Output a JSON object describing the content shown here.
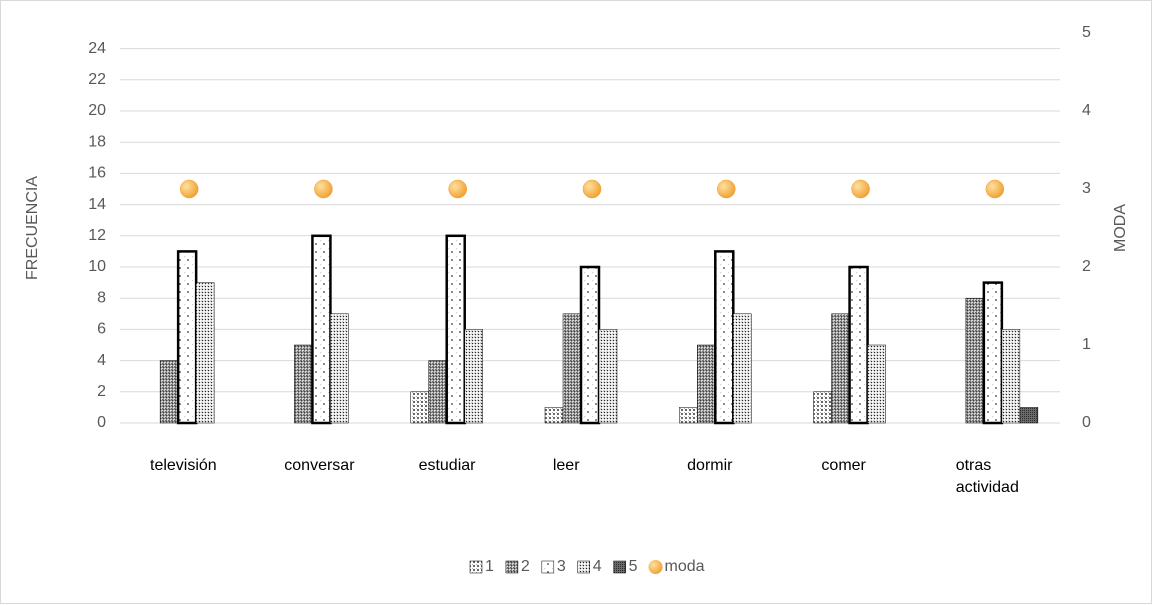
{
  "chart_data": {
    "type": "bar",
    "categories": [
      "televisión",
      "conversar",
      "estudiar",
      "leer",
      "dormir",
      "comer",
      "otras actividad"
    ],
    "series": [
      {
        "name": "1",
        "color": "#595959",
        "values": [
          0,
          0,
          2,
          1,
          1,
          2,
          0
        ]
      },
      {
        "name": "2",
        "color": "#404040",
        "values": [
          4,
          5,
          4,
          7,
          5,
          7,
          8
        ]
      },
      {
        "name": "3",
        "color": "#000000",
        "values": [
          11,
          12,
          12,
          10,
          11,
          10,
          9
        ]
      },
      {
        "name": "4",
        "color": "#262626",
        "values": [
          9,
          7,
          6,
          6,
          7,
          5,
          6
        ]
      },
      {
        "name": "5",
        "color": "#000000",
        "values": [
          0,
          0,
          0,
          0,
          0,
          0,
          1
        ]
      },
      {
        "name": "moda",
        "type": "scatter",
        "axis": "y2",
        "color": "#f0a030",
        "values": [
          3,
          3,
          3,
          3,
          3,
          3,
          3
        ]
      }
    ],
    "ylabel": "FRECUENCIA",
    "y2label": "MODA",
    "ylim": [
      0,
      25
    ],
    "yticks": [
      0,
      2,
      4,
      6,
      8,
      10,
      12,
      14,
      16,
      18,
      20,
      22,
      24
    ],
    "y2lim": [
      0,
      5
    ],
    "y2ticks": [
      0,
      1,
      2,
      3,
      4,
      5
    ],
    "grid": true,
    "legend": "bottom"
  }
}
